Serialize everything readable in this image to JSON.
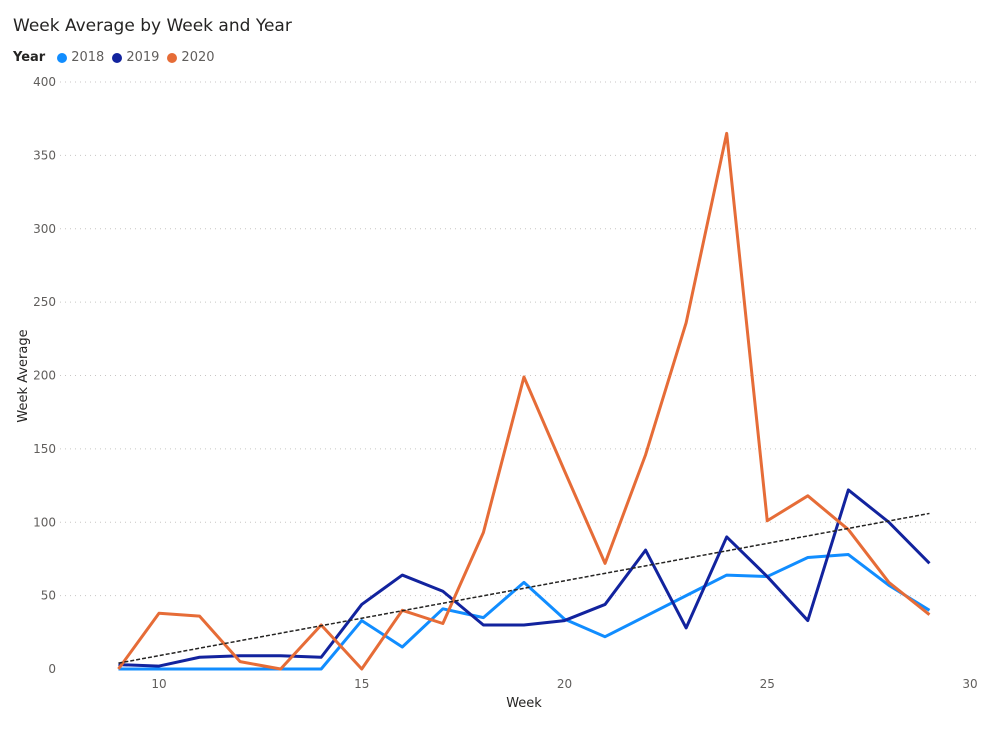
{
  "chart_data": {
    "type": "line",
    "title": "Week Average by Week and Year",
    "xlabel": "Week",
    "ylabel": "Week Average",
    "legend_title": "Year",
    "legend_position": "top-left",
    "xlim": [
      8,
      30
    ],
    "ylim": [
      0,
      400
    ],
    "xticks": [
      10,
      15,
      20,
      25,
      30
    ],
    "yticks": [
      0,
      50,
      100,
      150,
      200,
      250,
      300,
      350,
      400
    ],
    "grid": true,
    "x": [
      9,
      10,
      11,
      12,
      13,
      14,
      15,
      16,
      17,
      18,
      19,
      20,
      21,
      22,
      23,
      24,
      25,
      26,
      27,
      28,
      29
    ],
    "series": [
      {
        "name": "2018",
        "color": "#118dff",
        "values": [
          0,
          0,
          0,
          0,
          0,
          0,
          33,
          15,
          41,
          35,
          59,
          34,
          22,
          36,
          50,
          64,
          63,
          76,
          78,
          57,
          40
        ]
      },
      {
        "name": "2019",
        "color": "#12239e",
        "values": [
          3,
          2,
          8,
          9,
          9,
          8,
          44,
          64,
          53,
          30,
          30,
          33,
          44,
          81,
          28,
          90,
          63,
          33,
          122,
          100,
          72
        ]
      },
      {
        "name": "2020",
        "color": "#e66c37",
        "values": [
          0,
          38,
          36,
          5,
          0,
          30,
          0,
          40,
          31,
          93,
          199,
          135,
          72,
          146,
          236,
          365,
          101,
          118,
          95,
          59,
          37
        ]
      }
    ],
    "trendline": {
      "x": [
        9,
        29
      ],
      "y": [
        4,
        106
      ],
      "color": "#252423"
    }
  }
}
